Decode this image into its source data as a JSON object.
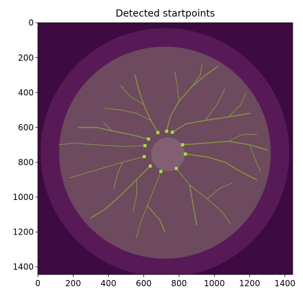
{
  "figure": {
    "title": "Detected startpoints"
  },
  "chart_data": {
    "type": "image",
    "title": "Detected startpoints",
    "xlabel": "",
    "ylabel": "",
    "xlim": [
      0,
      1444
    ],
    "ylim": [
      1444,
      0
    ],
    "x_ticks": [
      0,
      200,
      400,
      600,
      800,
      1000,
      1200,
      1400
    ],
    "y_ticks": [
      0,
      200,
      400,
      600,
      800,
      1000,
      1200,
      1400
    ],
    "image_size": [
      1444,
      1444
    ],
    "fundus_center": [
      720,
      745
    ],
    "fundus_radius": 600,
    "outer_ring_radius": 705,
    "optic_disc_center": [
      737,
      755
    ],
    "optic_disc_radius": 95,
    "colors": {
      "background": "#3d0a42",
      "outer_ring": "#571a56",
      "fundus": "#6d4a5e",
      "vessel": "#8a9a45",
      "optic_disc": "#8a6878",
      "startpoint": "#a4e03a"
    },
    "startpoints": [
      {
        "x": 680,
        "y": 630
      },
      {
        "x": 730,
        "y": 622
      },
      {
        "x": 762,
        "y": 628
      },
      {
        "x": 627,
        "y": 667
      },
      {
        "x": 607,
        "y": 705
      },
      {
        "x": 820,
        "y": 700
      },
      {
        "x": 836,
        "y": 753
      },
      {
        "x": 603,
        "y": 768
      },
      {
        "x": 637,
        "y": 822
      },
      {
        "x": 697,
        "y": 853
      },
      {
        "x": 785,
        "y": 836
      }
    ]
  }
}
